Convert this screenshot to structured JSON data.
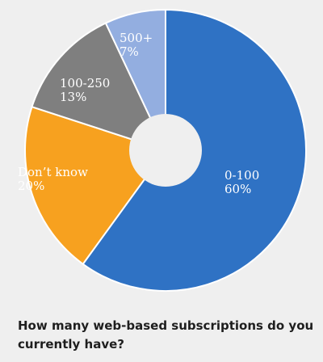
{
  "chart_data": {
    "type": "pie",
    "title": "How many web-based subscriptions do you currently have?",
    "slices": [
      {
        "label": "0-100",
        "value": 60,
        "display": "60%",
        "color": "#2f72c4"
      },
      {
        "label": "Don’t know",
        "value": 20,
        "display": "20%",
        "color": "#f7a11f"
      },
      {
        "label": "100-250",
        "value": 13,
        "display": "13%",
        "color": "#7f7f7f"
      },
      {
        "label": "500+",
        "value": 7,
        "display": "7%",
        "color": "#93aee0"
      }
    ],
    "donut_hole": true,
    "legend": "none",
    "slice_border_color": "#ffffff"
  }
}
